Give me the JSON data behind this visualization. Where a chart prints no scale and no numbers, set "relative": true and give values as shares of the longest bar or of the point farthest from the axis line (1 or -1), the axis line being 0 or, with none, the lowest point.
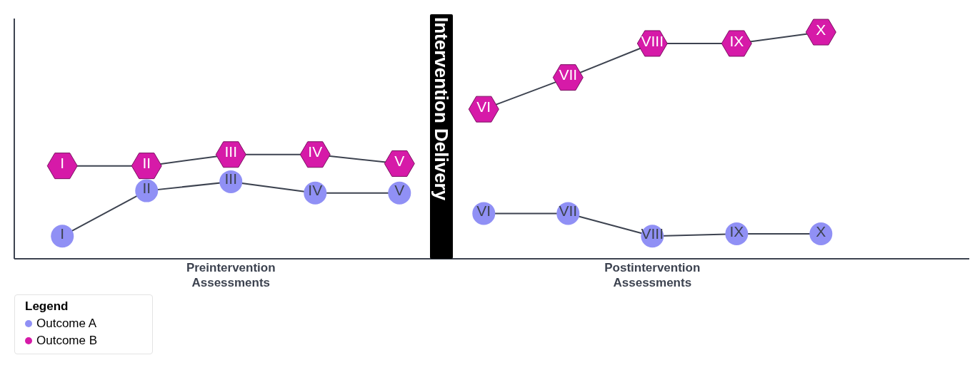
{
  "chart_data": {
    "type": "line",
    "relative": true,
    "categories": [
      "I",
      "II",
      "III",
      "IV",
      "V",
      "VI",
      "VII",
      "VIII",
      "IX",
      "X"
    ],
    "series": [
      {
        "name": "Outcome A",
        "color": "#9090f5",
        "marker": "circle",
        "values": [
          0.1,
          0.3,
          0.34,
          0.29,
          0.29,
          0.2,
          0.2,
          0.1,
          0.11,
          0.11
        ]
      },
      {
        "name": "Outcome B",
        "color": "#d61aa8",
        "marker": "diamond",
        "values": [
          0.41,
          0.41,
          0.46,
          0.46,
          0.42,
          0.66,
          0.8,
          0.95,
          0.95,
          1.0
        ]
      }
    ],
    "annotations": [
      "Preintervention\nAssessments",
      "Postintervention\nAssessments"
    ],
    "bands": [
      {
        "axis": "x",
        "from": "V",
        "to": "VI",
        "label": "Intervention Delivery",
        "color": "#000000"
      }
    ],
    "legend": "bottom left",
    "legend_title": "Legend"
  }
}
